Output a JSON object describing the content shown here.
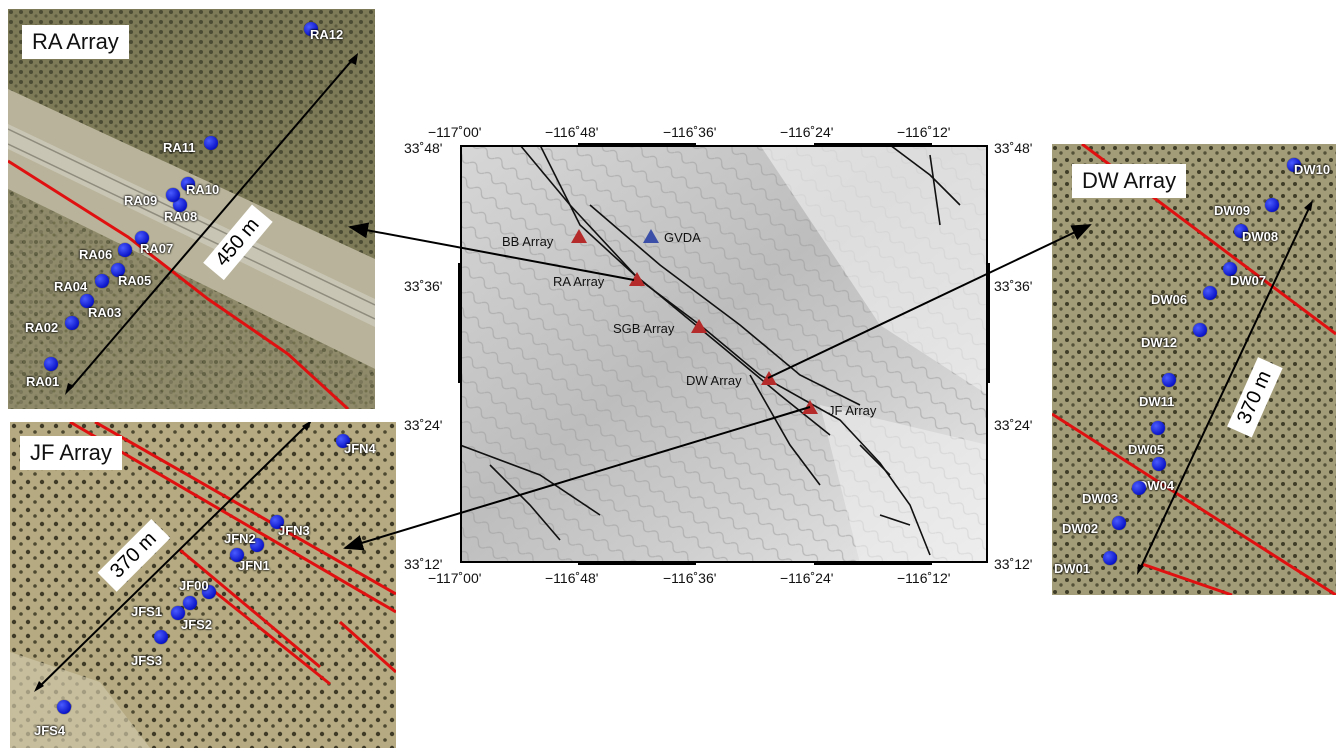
{
  "panels": {
    "ra": {
      "title": "RA Array",
      "distance": "450 m",
      "stations": [
        "RA01",
        "RA02",
        "RA03",
        "RA04",
        "RA05",
        "RA06",
        "RA07",
        "RA08",
        "RA09",
        "RA10",
        "RA11",
        "RA12"
      ]
    },
    "jf": {
      "title": "JF Array",
      "distance": "370 m",
      "stations": [
        "JFN4",
        "JFN3",
        "JFN2",
        "JFN1",
        "JF00",
        "JFS1",
        "JFS2",
        "JFS3",
        "JFS4"
      ]
    },
    "dw": {
      "title": "DW Array",
      "distance": "370 m",
      "stations": [
        "DW10",
        "DW09",
        "DW08",
        "DW07",
        "DW06",
        "DW12",
        "DW11",
        "DW05",
        "DW04",
        "DW03",
        "DW02",
        "DW01"
      ]
    }
  },
  "map": {
    "top_lon": [
      "−117˚00'",
      "−116˚48'",
      "−116˚36'",
      "−116˚24'",
      "−116˚12'"
    ],
    "bottom_lon": [
      "−117˚00'",
      "−116˚48'",
      "−116˚36'",
      "−116˚24'",
      "−116˚12'"
    ],
    "left_lat": [
      "33˚48'",
      "33˚36'",
      "33˚24'",
      "33˚12'"
    ],
    "right_lat": [
      "33˚48'",
      "33˚36'",
      "33˚24'",
      "33˚12'"
    ],
    "sites": [
      "BB Array",
      "GVDA",
      "RA Array",
      "SGB Array",
      "DW Array",
      "JF Array"
    ]
  },
  "colors": {
    "array_marker": "#b52b2b",
    "gvda_marker": "#3b4fa8",
    "fault_inset": "#e01010",
    "station": "#1020d8"
  }
}
